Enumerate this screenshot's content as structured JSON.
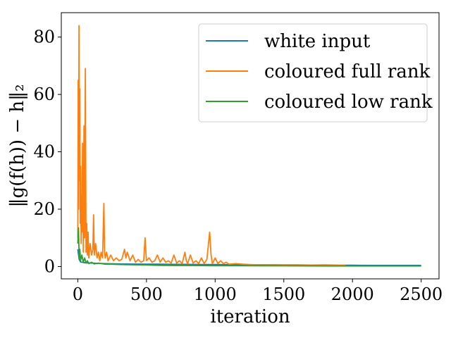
{
  "chart_data": {
    "type": "line",
    "title": "",
    "xlabel": "iteration",
    "ylabel": "‖g(f(h)) − h‖₂",
    "xlim": [
      -120,
      2630
    ],
    "ylim": [
      -4.3,
      88.5
    ],
    "xticks": [
      0,
      500,
      1000,
      1500,
      2000,
      2500
    ],
    "yticks": [
      0,
      20,
      40,
      60,
      80
    ],
    "grid": false,
    "legend_position": "top-right",
    "series": [
      {
        "name": "white input",
        "color": "#1f77b4",
        "x": [
          0,
          10,
          20,
          40,
          60,
          100,
          150,
          200,
          300,
          400,
          500,
          600,
          700,
          800,
          900,
          1000,
          1100,
          1200,
          1300,
          1400,
          1500,
          1600,
          1700,
          1800,
          1900,
          2000,
          2200,
          2500
        ],
        "y": [
          6.0,
          2.5,
          1.6,
          1.4,
          1.3,
          1.2,
          1.1,
          1.0,
          0.9,
          0.85,
          0.8,
          0.8,
          0.75,
          0.75,
          0.7,
          0.7,
          0.65,
          0.65,
          0.6,
          0.6,
          0.55,
          0.55,
          0.5,
          0.5,
          0.45,
          0.45,
          0.4,
          0.4
        ]
      },
      {
        "name": "coloured full rank",
        "color": "#ff7f0e",
        "x": [
          0,
          3,
          6,
          9,
          12,
          15,
          18,
          21,
          24,
          27,
          30,
          35,
          40,
          45,
          50,
          55,
          60,
          65,
          70,
          75,
          80,
          90,
          100,
          110,
          115,
          120,
          130,
          140,
          150,
          160,
          170,
          180,
          190,
          195,
          200,
          210,
          220,
          240,
          260,
          280,
          300,
          320,
          340,
          350,
          360,
          380,
          400,
          420,
          440,
          460,
          480,
          490,
          500,
          520,
          540,
          560,
          580,
          600,
          620,
          640,
          660,
          680,
          700,
          720,
          740,
          760,
          780,
          790,
          800,
          820,
          840,
          860,
          880,
          900,
          920,
          940,
          960,
          970,
          980,
          1000,
          1020,
          1040,
          1060,
          1080,
          1100,
          1150,
          1200,
          1250,
          1300,
          1400,
          1500,
          1600,
          1700,
          1800,
          1900,
          1950
        ],
        "y": [
          10.0,
          65.0,
          20.0,
          84.0,
          30.0,
          62.0,
          15.0,
          35.0,
          8.0,
          25.0,
          12.0,
          43.0,
          5.0,
          49.0,
          10.0,
          69.0,
          5.0,
          15.0,
          4.0,
          12.0,
          3.0,
          8.0,
          4.0,
          6.0,
          18.0,
          4.0,
          8.0,
          3.0,
          5.0,
          2.0,
          5.0,
          3.0,
          22.0,
          5.0,
          3.0,
          5.0,
          2.0,
          4.0,
          2.0,
          3.0,
          2.0,
          2.5,
          6.0,
          3.0,
          5.0,
          2.0,
          4.0,
          1.5,
          2.5,
          1.5,
          2.0,
          10.0,
          2.0,
          3.0,
          1.5,
          2.0,
          4.0,
          1.5,
          3.0,
          1.5,
          2.0,
          1.2,
          4.0,
          1.2,
          2.0,
          1.0,
          5.0,
          2.0,
          1.0,
          4.0,
          1.2,
          2.0,
          1.0,
          3.0,
          1.0,
          2.5,
          12.0,
          4.0,
          1.0,
          3.0,
          1.0,
          2.0,
          1.0,
          1.5,
          0.8,
          1.0,
          0.8,
          0.7,
          0.6,
          0.6,
          0.5,
          0.5,
          0.5,
          0.4,
          0.4,
          0.4
        ]
      },
      {
        "name": "coloured low rank",
        "color": "#2ca02c",
        "x": [
          0,
          5,
          10,
          15,
          20,
          30,
          40,
          50,
          60,
          70,
          80,
          100,
          120,
          150,
          200,
          250,
          300,
          400,
          500,
          600,
          800,
          1000,
          1200,
          1500,
          1800,
          2100,
          2500
        ],
        "y": [
          8.0,
          13.5,
          3.0,
          6.0,
          2.0,
          4.0,
          1.5,
          3.0,
          1.2,
          2.0,
          1.0,
          1.5,
          0.9,
          1.2,
          0.8,
          0.8,
          0.7,
          0.6,
          0.5,
          0.4,
          0.35,
          0.3,
          0.3,
          0.25,
          0.2,
          0.2,
          0.2
        ]
      }
    ]
  }
}
